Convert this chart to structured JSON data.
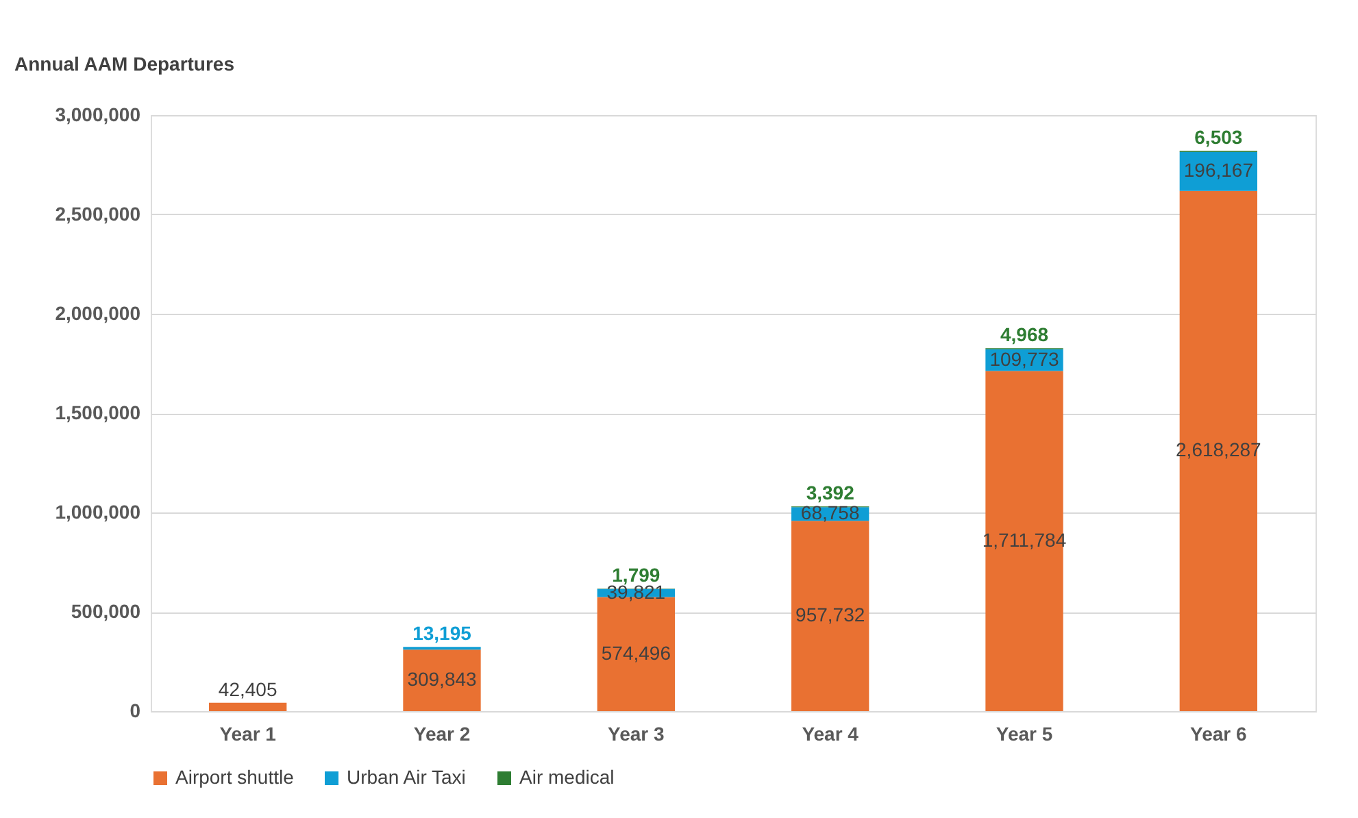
{
  "chart_data": {
    "type": "bar",
    "stacked": true,
    "ylabel": "Annual AAM Departures",
    "categories": [
      "Year 1",
      "Year 2",
      "Year 3",
      "Year 4",
      "Year 5",
      "Year 6"
    ],
    "series": [
      {
        "name": "Airport shuttle",
        "color": "#e97132",
        "values": [
          42405,
          309843,
          574496,
          957732,
          1711784,
          2618287
        ],
        "value_labels": [
          "42,405",
          "309,843",
          "574,496",
          "957,732",
          "1,711,784",
          "2,618,287"
        ]
      },
      {
        "name": "Urban Air Taxi",
        "color": "#0f9ed5",
        "values": [
          null,
          13195,
          39821,
          68758,
          109773,
          196167
        ],
        "value_labels": [
          null,
          "13,195",
          "39,821",
          "68,758",
          "109,773",
          "196,167"
        ]
      },
      {
        "name": "Air medical",
        "color": "#2e7d32",
        "values": [
          null,
          null,
          1799,
          3392,
          4968,
          6503
        ],
        "value_labels": [
          null,
          null,
          "1,799",
          "3,392",
          "4,968",
          "6,503"
        ]
      }
    ],
    "ylim": [
      0,
      3000000
    ],
    "yticks": [
      0,
      {
        "value": 500000,
        "label": "500,000"
      },
      {
        "value": 1000000,
        "label": "1,000,000"
      },
      {
        "value": 1500000,
        "label": "1,500,000"
      },
      {
        "value": 2000000,
        "label": "2,000,000"
      },
      {
        "value": 2500000,
        "label": "2,500,000"
      },
      {
        "value": 3000000,
        "label": "3,000,000"
      }
    ],
    "grid": "y",
    "legend": "bottom"
  }
}
